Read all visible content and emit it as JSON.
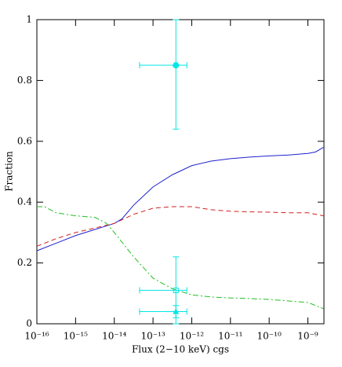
{
  "chart_data": {
    "type": "line",
    "x_label": "Flux (2−10 keV) cgs",
    "y_label": "Fraction",
    "log_x": true,
    "xlim": [
      1e-16,
      2.6e-09
    ],
    "xticks": [
      {
        "value": 1e-16,
        "label": "10⁻¹⁶"
      },
      {
        "value": 1e-15,
        "label": "10⁻¹⁵"
      },
      {
        "value": 1e-14,
        "label": "10⁻¹⁴"
      },
      {
        "value": 1e-13,
        "label": "10⁻¹³"
      },
      {
        "value": 1e-12,
        "label": "10⁻¹²"
      },
      {
        "value": 1e-11,
        "label": "10⁻¹¹"
      },
      {
        "value": 1e-10,
        "label": "10⁻¹⁰"
      },
      {
        "value": 1e-09,
        "label": "10⁻⁹"
      }
    ],
    "ylim": [
      0,
      1
    ],
    "yticks": [
      0,
      0.2,
      0.4,
      0.6,
      0.8,
      1
    ],
    "series": [
      {
        "color": "#2020d0",
        "dash": "none",
        "x": [
          1e-16,
          3.16e-16,
          1e-15,
          3.16e-15,
          1e-14,
          1.58e-14,
          3.16e-14,
          1e-13,
          3.16e-13,
          1e-12,
          3.16e-12,
          1e-11,
          3.16e-11,
          1e-10,
          3.16e-10,
          1e-09,
          1.58e-09,
          2.51e-09
        ],
        "values": [
          0.24,
          0.265,
          0.29,
          0.31,
          0.33,
          0.345,
          0.39,
          0.45,
          0.49,
          0.52,
          0.535,
          0.543,
          0.548,
          0.552,
          0.555,
          0.56,
          0.565,
          0.58
        ]
      },
      {
        "color": "#d02020",
        "dash": "6,4",
        "x": [
          1e-16,
          3.16e-16,
          1e-15,
          3.16e-15,
          1e-14,
          3.16e-14,
          1e-13,
          3.16e-13,
          1e-12,
          3.16e-12,
          1e-11,
          3.16e-11,
          1e-10,
          3.16e-10,
          1e-09,
          2.51e-09
        ],
        "values": [
          0.255,
          0.28,
          0.3,
          0.315,
          0.33,
          0.36,
          0.38,
          0.385,
          0.385,
          0.375,
          0.37,
          0.368,
          0.367,
          0.365,
          0.365,
          0.355
        ]
      },
      {
        "color": "#20c020",
        "dash": "7,3,2,3",
        "x": [
          1e-16,
          1.58e-16,
          3.16e-16,
          1e-15,
          3.16e-15,
          6.3e-15,
          1e-14,
          3.16e-14,
          1e-13,
          3.16e-13,
          1e-12,
          3.16e-12,
          1e-11,
          3.16e-11,
          1e-10,
          3.16e-10,
          1e-09,
          2.51e-09
        ],
        "values": [
          0.385,
          0.385,
          0.365,
          0.355,
          0.35,
          0.33,
          0.3,
          0.22,
          0.15,
          0.115,
          0.095,
          0.088,
          0.085,
          0.083,
          0.08,
          0.075,
          0.07,
          0.05
        ]
      }
    ],
    "points": {
      "color": "#00e5e5",
      "markers": [
        "circle",
        "square",
        "triangle"
      ],
      "x": [
        3.9e-13,
        3.9e-13,
        3.9e-13
      ],
      "values": [
        0.85,
        0.11,
        0.04
      ],
      "x_low": [
        4.5e-14,
        4.5e-14,
        4.5e-14
      ],
      "x_high": [
        7.5e-13,
        7.5e-13,
        7.5e-13
      ],
      "y_low": [
        0.64,
        0,
        0.02
      ],
      "y_high": [
        1,
        0.22,
        0.06
      ]
    }
  }
}
